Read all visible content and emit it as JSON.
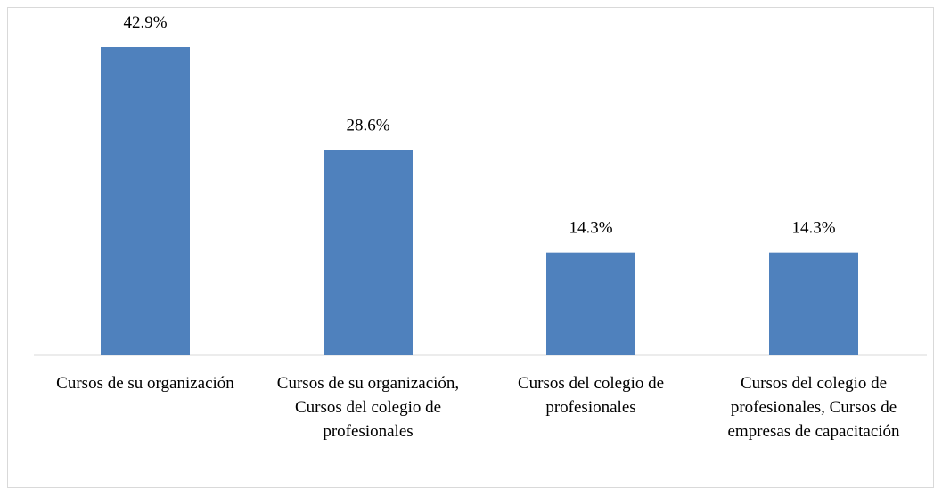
{
  "chart_data": {
    "type": "bar",
    "categories": [
      "Cursos de su organización",
      "Cursos de su organización, Cursos del colegio de profesionales",
      "Cursos del colegio de profesionales",
      "Cursos del colegio de profesionales, Cursos de empresas de capacitación"
    ],
    "values": [
      42.9,
      28.6,
      14.3,
      14.3
    ],
    "value_labels": [
      "42.9%",
      "28.6%",
      "14.3%",
      "14.3%"
    ],
    "color": "#4f81bd"
  }
}
